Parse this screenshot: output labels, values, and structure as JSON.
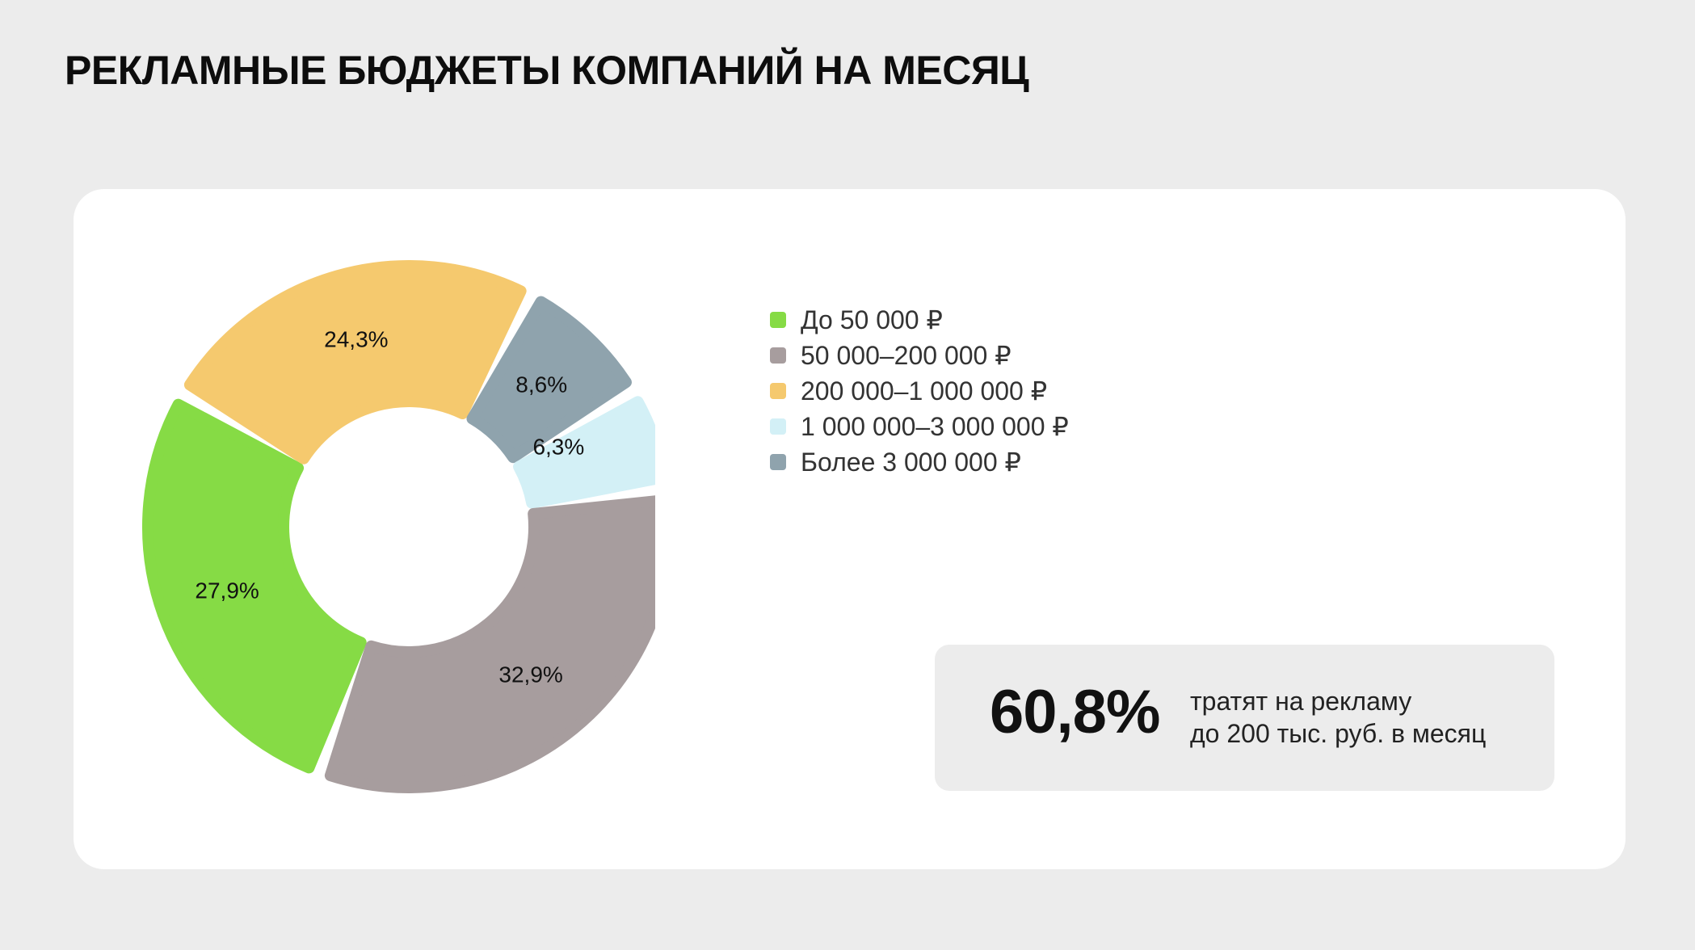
{
  "title": "РЕКЛАМНЫЕ БЮДЖЕТЫ КОМПАНИЙ НА МЕСЯЦ",
  "chart_data": {
    "type": "pie",
    "variant": "donut",
    "categories": [
      "До 50 000 ₽",
      "50 000–200 000 ₽",
      "200 000–1 000 000 ₽",
      "1 000 000–3 000 000 ₽",
      "Более 3 000 000 ₽"
    ],
    "values": [
      27.9,
      32.9,
      24.3,
      6.3,
      8.6
    ],
    "value_labels": [
      "27,9%",
      "32,9%",
      "24,3%",
      "6,3%",
      "8,6%"
    ],
    "colors": [
      "#86db45",
      "#a79d9e",
      "#f5c96e",
      "#d3f0f6",
      "#8fa3ad"
    ],
    "legend_position": "right"
  },
  "legend": [
    {
      "label": "До 50 000 ₽",
      "color": "#86db45"
    },
    {
      "label": "50 000–200 000 ₽",
      "color": "#a79d9e"
    },
    {
      "label": "200 000–1 000 000 ₽",
      "color": "#f5c96e"
    },
    {
      "label": "1 000 000–3 000 000 ₽",
      "color": "#d3f0f6"
    },
    {
      "label": "Более 3 000 000 ₽",
      "color": "#8fa3ad"
    }
  ],
  "highlight": {
    "value": "60,8%",
    "caption_line1": "тратят на рекламу",
    "caption_line2": "до 200 тыс. руб. в месяц"
  }
}
